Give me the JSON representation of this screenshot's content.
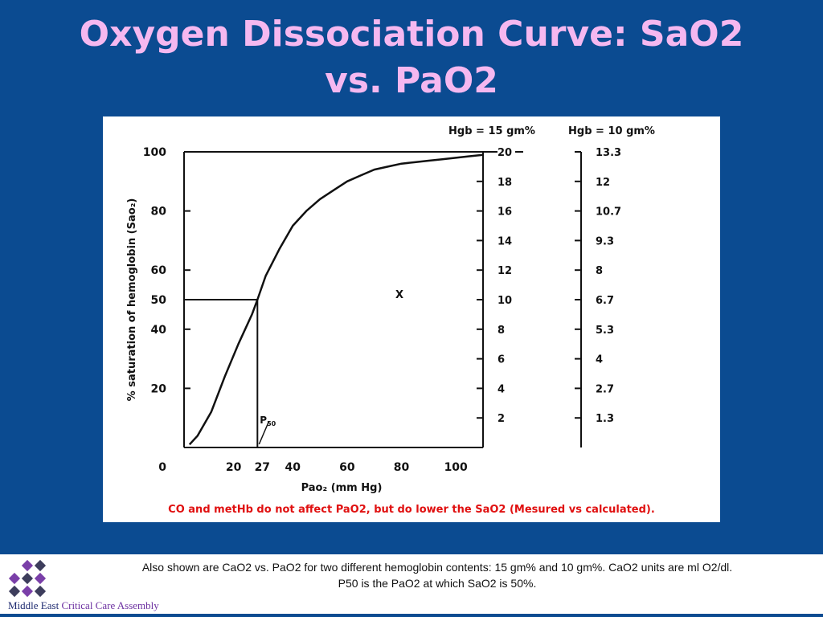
{
  "slide": {
    "title_line1": "Oxygen Dissociation Curve:  SaO2",
    "title_line2": "vs. PaO2",
    "caption_line1": "Also shown are CaO2 vs. PaO2 for two different hemoglobin contents:  15 gm% and 10 gm%.  CaO2 units are ml O2/dl.",
    "caption_line2": "P50 is the PaO2 at which SaO2 is 50%.",
    "org_part1": "Middle East",
    "org_part2": "Critical Care Assembly",
    "title_color": "#f5b8f0",
    "background_color": "#0b4b91",
    "note_color": "#e01010"
  },
  "chart_data": {
    "type": "line",
    "xlabel": "Pao₂ (mm Hg)",
    "ylabel": "% saturation of hemoglobin (Sao₂)",
    "xlim": [
      0,
      110
    ],
    "ylim": [
      0,
      100
    ],
    "x_ticks": [
      0,
      20,
      27,
      40,
      60,
      80,
      100
    ],
    "y_ticks": [
      0,
      20,
      40,
      50,
      60,
      80,
      100
    ],
    "series": [
      {
        "x": [
          2,
          5,
          10,
          15,
          20,
          25,
          27,
          30,
          35,
          40,
          45,
          50,
          55,
          60,
          65,
          70,
          75,
          80,
          85,
          90,
          95,
          100,
          105,
          110
        ],
        "y": [
          1,
          4,
          12,
          24,
          35,
          45,
          50,
          58,
          67,
          75,
          80,
          84,
          87,
          90,
          92,
          94,
          95,
          96,
          96.5,
          97,
          97.5,
          98,
          98.5,
          99
        ]
      }
    ],
    "p50": {
      "label": "P",
      "subscript": "50",
      "x": 27,
      "y": 50
    },
    "marker_label": "X",
    "right_axis_1": {
      "title": "Hgb = 15 gm%",
      "ticks": [
        {
          "label": "20",
          "sat": 100
        },
        {
          "label": "18",
          "sat": 90
        },
        {
          "label": "16",
          "sat": 80
        },
        {
          "label": "14",
          "sat": 70
        },
        {
          "label": "12",
          "sat": 60
        },
        {
          "label": "10",
          "sat": 50
        },
        {
          "label": "8",
          "sat": 40
        },
        {
          "label": "6",
          "sat": 30
        },
        {
          "label": "4",
          "sat": 20
        },
        {
          "label": "2",
          "sat": 10
        }
      ]
    },
    "right_axis_2": {
      "title": "Hgb = 10 gm%",
      "ticks": [
        {
          "label": "13.3",
          "sat": 100
        },
        {
          "label": "12",
          "sat": 90
        },
        {
          "label": "10.7",
          "sat": 80
        },
        {
          "label": "9.3",
          "sat": 70
        },
        {
          "label": "8",
          "sat": 60
        },
        {
          "label": "6.7",
          "sat": 50
        },
        {
          "label": "5.3",
          "sat": 40
        },
        {
          "label": "4",
          "sat": 30
        },
        {
          "label": "2.7",
          "sat": 20
        },
        {
          "label": "1.3",
          "sat": 10
        }
      ]
    },
    "note": "CO and metHb do not affect PaO2, but do lower the SaO2 (Mesured vs calculated)."
  }
}
